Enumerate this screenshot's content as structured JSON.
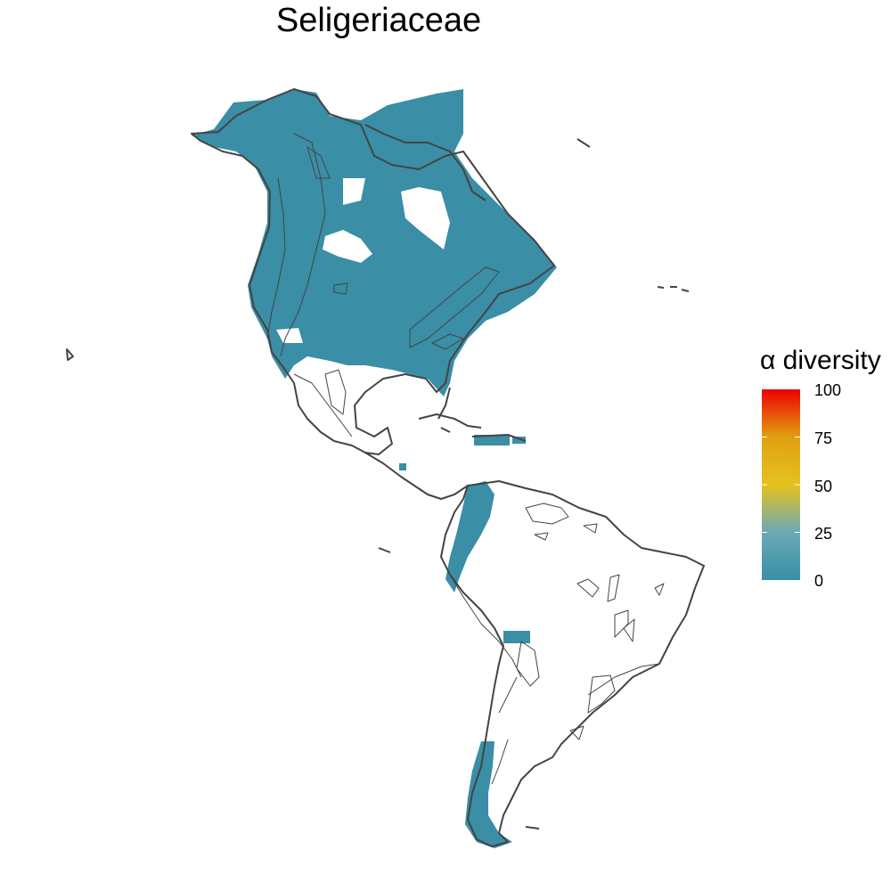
{
  "title": "Seligeriaceae",
  "legend": {
    "title": "α diversity",
    "ticks": [
      "100",
      "75",
      "50",
      "25",
      "0"
    ],
    "tick_values": [
      100,
      75,
      50,
      25,
      0
    ],
    "range": [
      0,
      100
    ],
    "colors": {
      "0": "#3a8ea6",
      "25": "#6aa9b6",
      "50": "#e5c21e",
      "75": "#e0a010",
      "100": "#ee0000"
    }
  },
  "map": {
    "region": "Americas",
    "fill_color": "#3a8ea6",
    "fill_value": 10,
    "outline_color": "#444444"
  }
}
